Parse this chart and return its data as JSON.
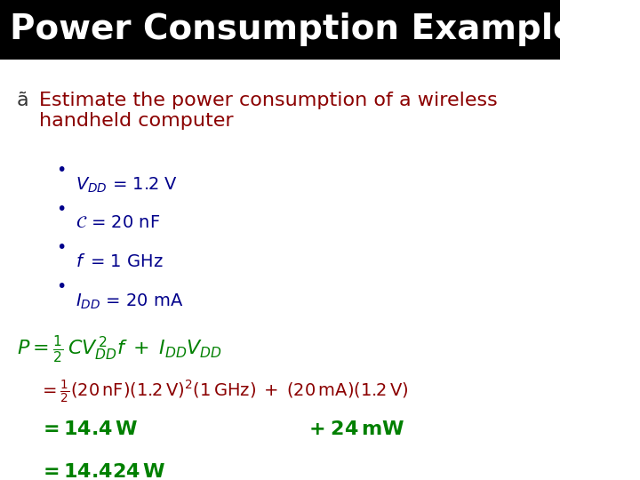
{
  "title": "Power Consumption Example",
  "title_bg": "#000000",
  "title_color": "#ffffff",
  "title_fontsize": 28,
  "bg_color": "#ffffff",
  "bullet_color": "#00008B",
  "dark_red": "#8B0000",
  "green": "#008000",
  "bullet_header": "ã  Estimate the power consumption of a wireless handheld computer",
  "bullets": [
    "$V_{DD}$ = 1.2 V",
    "$\\mathcal{C}$ = 20 nF",
    "$f$ = 1 GHz",
    "$I_{DD}$ = 20 mA"
  ],
  "formula_line1": "$P = ½\\,CV_{DD}^{\\,2}f \\;+\\; I_{DD}V_{DD}$",
  "formula_line2": "$= ½(20\\,\\mathrm{nF})(1.2\\,\\mathrm{V})^2(1\\,\\mathrm{GHz})\\;+\\;(20\\,\\mathrm{mA})(1.2\\,\\mathrm{V})$",
  "formula_line3a": "$= \\mathbf{14.4\\,W}$",
  "formula_line3b": "$+\\;\\mathbf{24\\,mW}$",
  "formula_line4": "$= \\mathbf{14.424\\,W}$"
}
